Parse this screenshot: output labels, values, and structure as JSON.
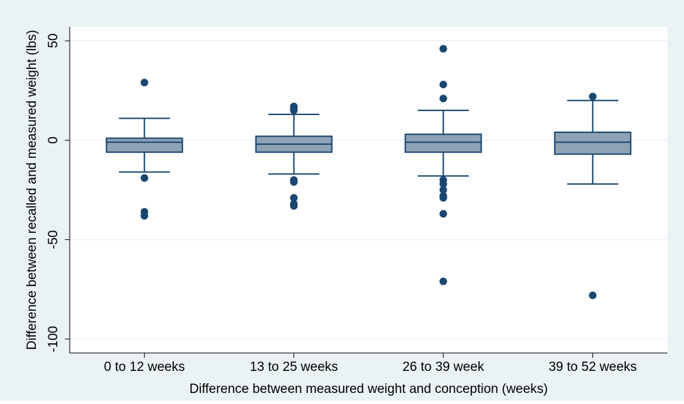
{
  "chart_data": {
    "type": "box",
    "xlabel": "Difference between measured weight and conception (weeks)",
    "ylabel": "Difference between recalled and measured weight (lbs)",
    "ylim": [
      -107,
      57
    ],
    "yticks": [
      50,
      0,
      -50,
      -100
    ],
    "ytick_labels": [
      "50",
      "0",
      "-50",
      "-100"
    ],
    "grid": true,
    "categories": [
      "0 to 12 weeks",
      "13 to 25 weeks",
      "26 to 39 week",
      "39 to 52 weeks"
    ],
    "boxes": [
      {
        "category": "0 to 12 weeks",
        "lower_whisker": -16,
        "q1": -6,
        "median": -1,
        "q3": 1,
        "upper_whisker": 11,
        "outliers": [
          29,
          -19,
          -36,
          -38
        ]
      },
      {
        "category": "13 to 25 weeks",
        "lower_whisker": -17,
        "q1": -6,
        "median": -2,
        "q3": 2,
        "upper_whisker": 13,
        "outliers": [
          17,
          16,
          15,
          -20,
          -21,
          -29,
          -32,
          -33
        ]
      },
      {
        "category": "26 to 39 week",
        "lower_whisker": -18,
        "q1": -6,
        "median": -1,
        "q3": 3,
        "upper_whisker": 15,
        "outliers": [
          46,
          28,
          21,
          -20,
          -22,
          -25,
          -28,
          -29,
          -37,
          -71
        ]
      },
      {
        "category": "39 to 52 weeks",
        "lower_whisker": -22,
        "q1": -7,
        "median": -1,
        "q3": 4,
        "upper_whisker": 20,
        "outliers": [
          22,
          -78
        ]
      }
    ],
    "colors": {
      "background": "#eaf2f3",
      "plot_background": "#ffffff",
      "box_fill": "#8fa3b6",
      "line": "#1a476f",
      "grid": "#eaf2f3"
    }
  }
}
